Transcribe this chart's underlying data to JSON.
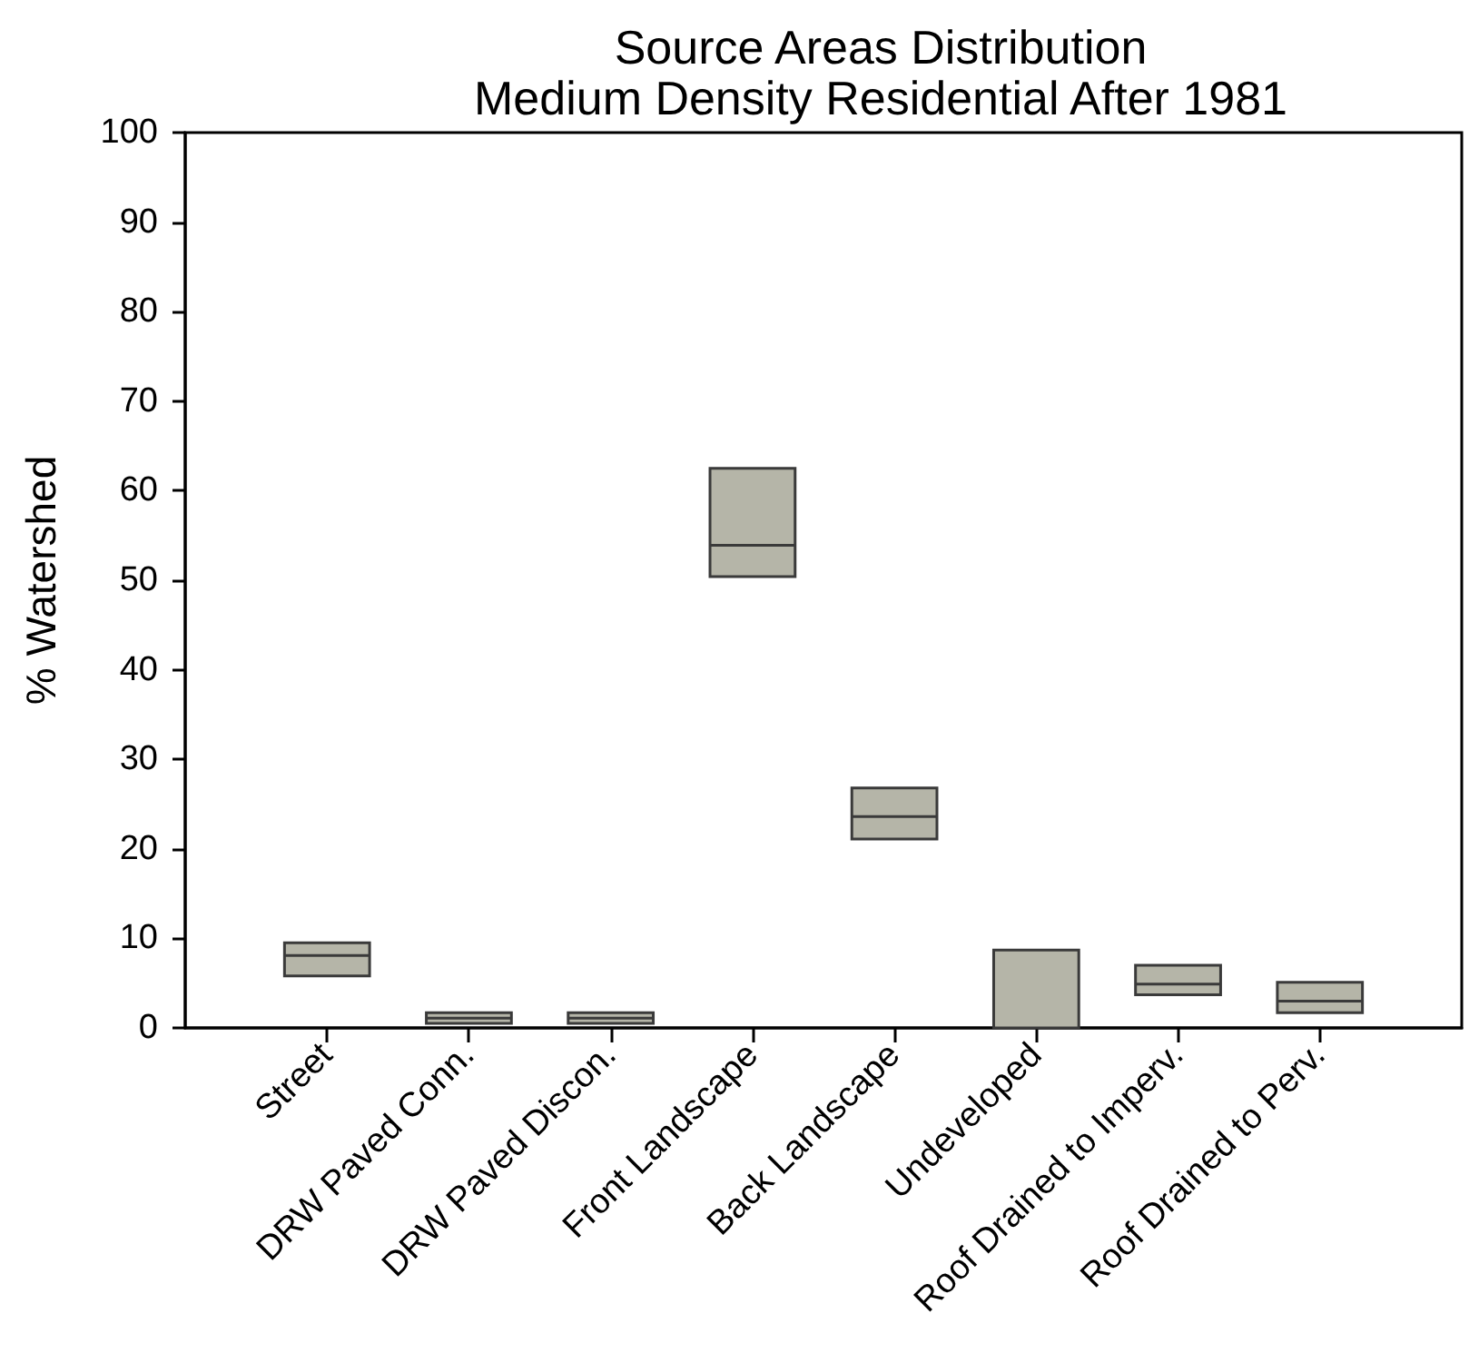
{
  "chart_data": {
    "type": "box",
    "title": "Source Areas Distribution",
    "subtitle": "Medium Density Residential After 1981",
    "ylabel": "% Watershed",
    "categories": [
      "Street",
      "DRW Paved Conn.",
      "DRW Paved Discon.",
      "Front Landscape",
      "Back Landscape",
      "Undeveloped",
      "Roof Drained to Imperv.",
      "Roof Drained to Perv."
    ],
    "boxes": [
      {
        "low": 5.8,
        "q1": 5.8,
        "median": 8.1,
        "q3": 9.5,
        "high": 9.5
      },
      {
        "low": 0.5,
        "q1": 0.5,
        "median": 1.1,
        "q3": 1.7,
        "high": 1.7
      },
      {
        "low": 0.5,
        "q1": 0.5,
        "median": 1.1,
        "q3": 1.7,
        "high": 1.7
      },
      {
        "low": 50.4,
        "q1": 50.4,
        "median": 53.9,
        "q3": 62.5,
        "high": 62.5
      },
      {
        "low": 21.1,
        "q1": 21.1,
        "median": 23.6,
        "q3": 26.8,
        "high": 26.8
      },
      {
        "low": 0,
        "q1": 0,
        "median": 0,
        "q3": 8.7,
        "high": 8.7
      },
      {
        "low": 3.7,
        "q1": 3.7,
        "median": 4.9,
        "q3": 7.0,
        "high": 7.0
      },
      {
        "low": 1.7,
        "q1": 1.7,
        "median": 3.0,
        "q3": 5.1,
        "high": 5.1
      }
    ],
    "color": "#b5b5a8",
    "ylim": [
      0,
      100
    ],
    "yticks": [
      0,
      10,
      20,
      30,
      40,
      50,
      60,
      70,
      80,
      90,
      100
    ],
    "grid": false
  }
}
